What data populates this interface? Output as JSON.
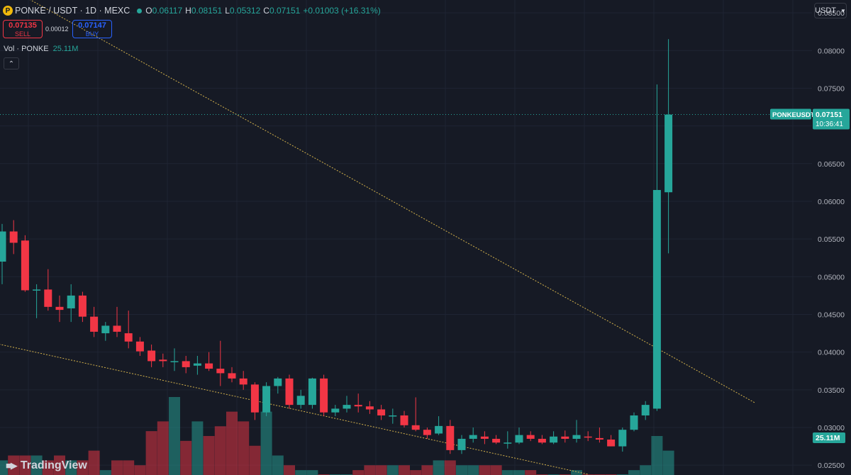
{
  "header": {
    "symbol": "PONKE / USDT · 1D · MEXC",
    "logo_letter": "P",
    "o_key": "O",
    "o_val": "0.06117",
    "h_key": "H",
    "h_val": "0.08151",
    "l_key": "L",
    "l_val": "0.05312",
    "c_key": "C",
    "c_val": "0.07151",
    "change": "+0.01003 (+16.31%)"
  },
  "trade": {
    "sell_price": "0.07135",
    "sell_label": "SELL",
    "spread": "0.00012",
    "buy_price": "0.07147",
    "buy_label": "BUY"
  },
  "volume": {
    "label": "Vol · PONKE",
    "value": "25.11M"
  },
  "collapse_icon": "chevron-up-icon",
  "currency": "USDT",
  "branding": "TradingView",
  "colors": {
    "background": "#161a25",
    "up": "#26a69a",
    "down": "#f23645",
    "grid": "#1f2433",
    "trendline": "#d4b24c"
  },
  "price_label": {
    "symbol": "PONKEUSDT",
    "price": "0.07151",
    "countdown": "10:36:41"
  },
  "chart_data": {
    "type": "candlestick",
    "interval": "1D",
    "y_axis": {
      "ticks": [
        "0.08500",
        "0.08000",
        "0.07500",
        "0.07000",
        "0.06500",
        "0.06000",
        "0.05500",
        "0.05000",
        "0.04500",
        "0.04000",
        "0.03500",
        "0.03000",
        "0.02500"
      ],
      "range": [
        0.0237,
        0.0867
      ],
      "grid": true
    },
    "candles": [
      [
        0.052,
        0.057,
        0.049,
        0.056
      ],
      [
        0.056,
        0.0575,
        0.053,
        0.0545
      ],
      [
        0.0548,
        0.0555,
        0.048,
        0.0482
      ],
      [
        0.0482,
        0.049,
        0.0445,
        0.0483
      ],
      [
        0.0483,
        0.051,
        0.0455,
        0.046
      ],
      [
        0.046,
        0.0475,
        0.044,
        0.0456
      ],
      [
        0.0458,
        0.049,
        0.044,
        0.0475
      ],
      [
        0.0475,
        0.048,
        0.044,
        0.0447
      ],
      [
        0.0447,
        0.046,
        0.042,
        0.0427
      ],
      [
        0.0425,
        0.044,
        0.0415,
        0.0435
      ],
      [
        0.0435,
        0.046,
        0.042,
        0.0427
      ],
      [
        0.0425,
        0.0455,
        0.0405,
        0.0414
      ],
      [
        0.0414,
        0.042,
        0.0395,
        0.0401
      ],
      [
        0.0402,
        0.041,
        0.038,
        0.0388
      ],
      [
        0.039,
        0.0398,
        0.038,
        0.0388
      ],
      [
        0.0388,
        0.0405,
        0.0375,
        0.0388
      ],
      [
        0.0388,
        0.0395,
        0.0372,
        0.038
      ],
      [
        0.0382,
        0.0395,
        0.037,
        0.0385
      ],
      [
        0.0385,
        0.04,
        0.0375,
        0.0378
      ],
      [
        0.0378,
        0.0415,
        0.0355,
        0.0372
      ],
      [
        0.0372,
        0.038,
        0.036,
        0.0365
      ],
      [
        0.0365,
        0.0375,
        0.035,
        0.0357
      ],
      [
        0.0357,
        0.036,
        0.031,
        0.032
      ],
      [
        0.032,
        0.036,
        0.0315,
        0.0355
      ],
      [
        0.0355,
        0.0367,
        0.0345,
        0.0365
      ],
      [
        0.0365,
        0.037,
        0.0325,
        0.033
      ],
      [
        0.033,
        0.035,
        0.0325,
        0.0342
      ],
      [
        0.033,
        0.0366,
        0.0325,
        0.0365
      ],
      [
        0.0365,
        0.037,
        0.0315,
        0.032
      ],
      [
        0.032,
        0.033,
        0.0315,
        0.0325
      ],
      [
        0.0325,
        0.0342,
        0.032,
        0.033
      ],
      [
        0.033,
        0.0345,
        0.032,
        0.0328
      ],
      [
        0.0328,
        0.0335,
        0.0318,
        0.0324
      ],
      [
        0.0324,
        0.033,
        0.031,
        0.0316
      ],
      [
        0.0316,
        0.0325,
        0.0305,
        0.0316
      ],
      [
        0.0316,
        0.0322,
        0.03,
        0.0303
      ],
      [
        0.0303,
        0.034,
        0.0295,
        0.0297
      ],
      [
        0.0297,
        0.03,
        0.0285,
        0.029
      ],
      [
        0.0292,
        0.0315,
        0.029,
        0.0302
      ],
      [
        0.0302,
        0.031,
        0.0265,
        0.027
      ],
      [
        0.027,
        0.029,
        0.0265,
        0.0285
      ],
      [
        0.0285,
        0.03,
        0.028,
        0.029
      ],
      [
        0.0288,
        0.0295,
        0.0278,
        0.0285
      ],
      [
        0.0285,
        0.029,
        0.0278,
        0.028
      ],
      [
        0.028,
        0.0295,
        0.0272,
        0.028
      ],
      [
        0.028,
        0.03,
        0.0278,
        0.029
      ],
      [
        0.029,
        0.0295,
        0.0282,
        0.0285
      ],
      [
        0.0285,
        0.029,
        0.0278,
        0.028
      ],
      [
        0.028,
        0.0295,
        0.0278,
        0.0288
      ],
      [
        0.0288,
        0.0296,
        0.028,
        0.0285
      ],
      [
        0.0285,
        0.031,
        0.028,
        0.029
      ],
      [
        0.0288,
        0.0295,
        0.0282,
        0.0287
      ],
      [
        0.0286,
        0.03,
        0.028,
        0.0284
      ],
      [
        0.0284,
        0.029,
        0.0275,
        0.0275
      ],
      [
        0.0275,
        0.03,
        0.0268,
        0.0297
      ],
      [
        0.0297,
        0.032,
        0.0295,
        0.0316
      ],
      [
        0.0316,
        0.0335,
        0.031,
        0.033
      ],
      [
        0.0325,
        0.0755,
        0.0322,
        0.0615
      ],
      [
        0.0612,
        0.0815,
        0.0531,
        0.0715
      ]
    ],
    "volumes": [
      3,
      4,
      4,
      4,
      3,
      4,
      3,
      3,
      5,
      1,
      3,
      3,
      2,
      9,
      11,
      16,
      7,
      11,
      8,
      10,
      13,
      11,
      6,
      13,
      4,
      2,
      1,
      1,
      0,
      0,
      0,
      1,
      2,
      2,
      2,
      2,
      1,
      2,
      3,
      3,
      2,
      2,
      2,
      2,
      1,
      1,
      1,
      0,
      0,
      0,
      1,
      0,
      0,
      0,
      0,
      1,
      2,
      8,
      5
    ],
    "volume_max_value": "25.11M",
    "trendlines": [
      {
        "from": [
          0,
          0.0888
        ],
        "to": [
          65.5,
          0.0333
        ]
      },
      {
        "from": [
          -1,
          0.0413
        ],
        "to": [
          51,
          0.0238
        ]
      }
    ]
  }
}
